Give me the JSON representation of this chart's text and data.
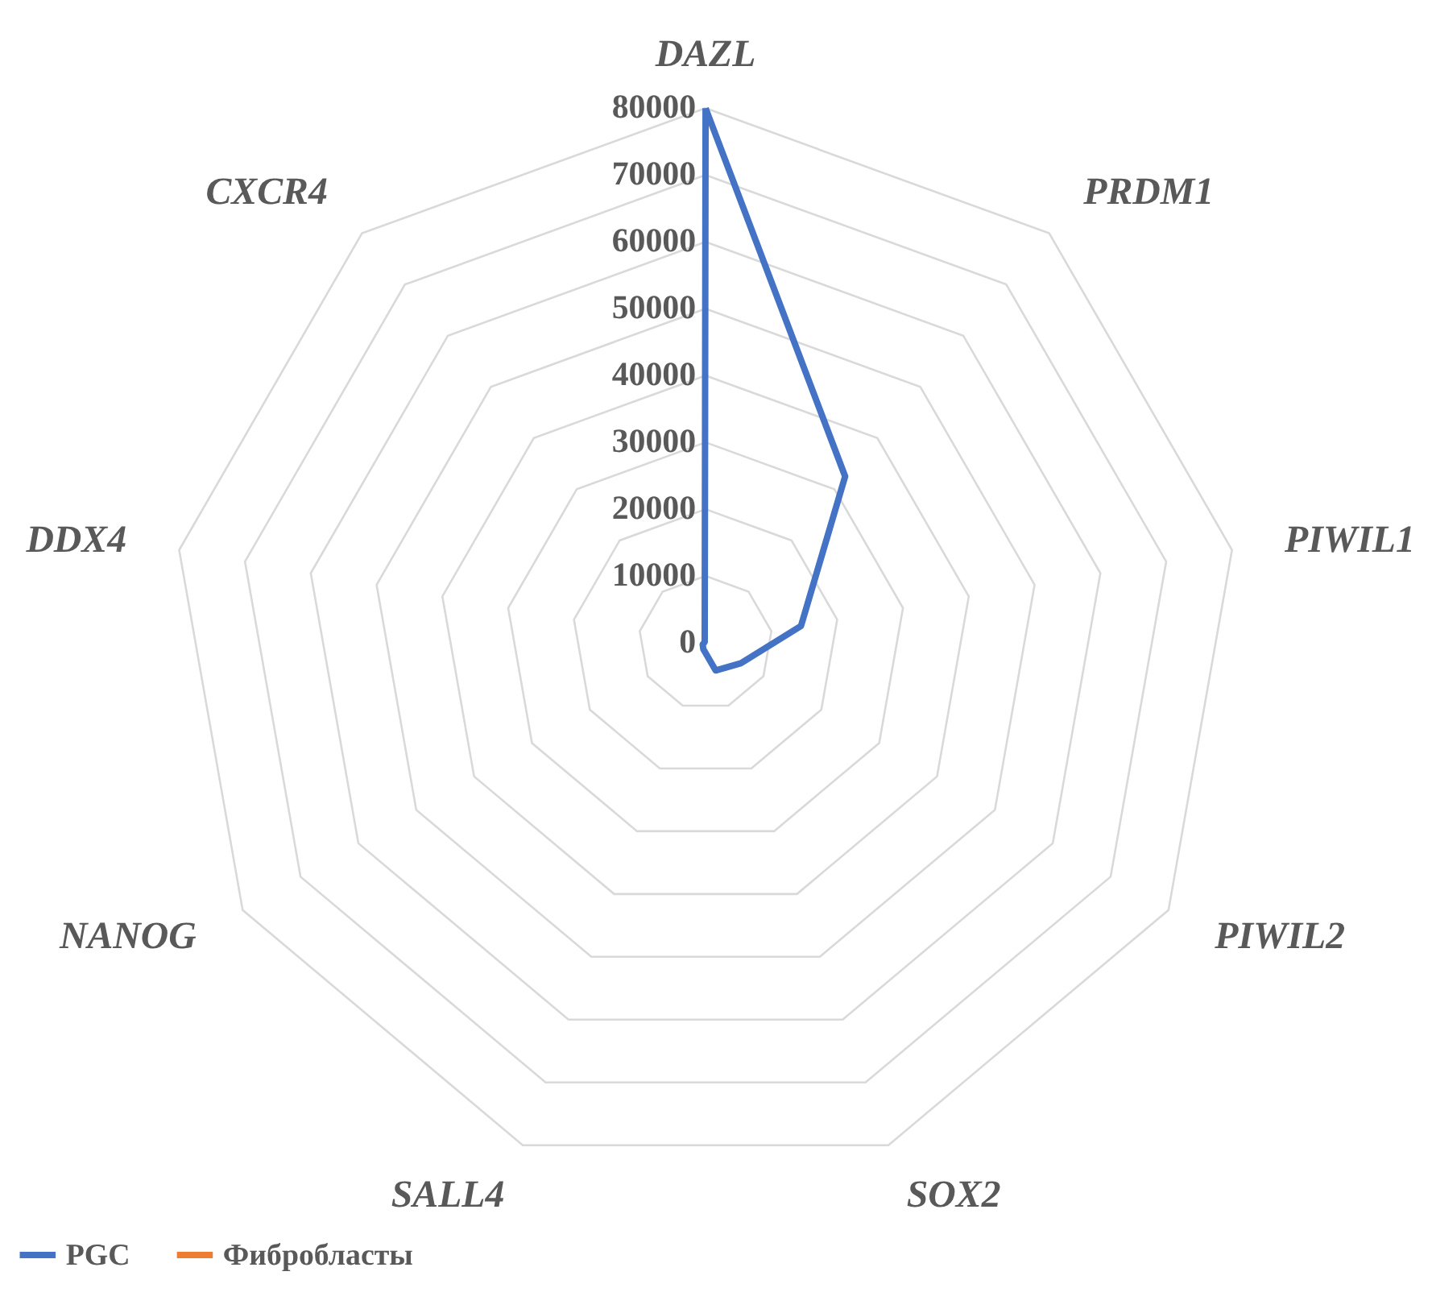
{
  "chart_data": {
    "type": "radar",
    "categories": [
      "DAZL",
      "PRDM1",
      "PIWIL1",
      "PIWIL2",
      "SOX2",
      "SALL4",
      "NANOG",
      "DDX4",
      "CXCR4"
    ],
    "series": [
      {
        "name": "PGC",
        "color": "#4472c4",
        "values": [
          80000,
          32500,
          14500,
          6100,
          4400,
          1000,
          500,
          200,
          200
        ]
      },
      {
        "name": "Фибробласты",
        "color": "#ed7d31",
        "values": [
          null,
          null,
          null,
          null,
          null,
          null,
          null,
          null,
          null
        ]
      }
    ],
    "ylim": [
      0,
      80000
    ],
    "yticks": [
      0,
      10000,
      20000,
      30000,
      40000,
      50000,
      60000,
      70000,
      80000
    ],
    "grid": true,
    "legend": "bottom",
    "line_style": "solid",
    "marker": "none"
  }
}
